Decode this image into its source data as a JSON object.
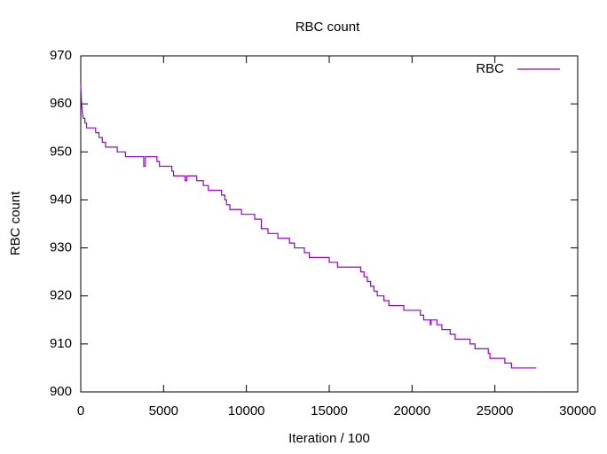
{
  "chart_data": {
    "type": "line",
    "title": "RBC count",
    "x_label": "Iteration / 100",
    "y_label": "RBC count",
    "xlim": [
      0,
      30000
    ],
    "xticks": [
      0,
      5000,
      10000,
      15000,
      20000,
      25000,
      30000
    ],
    "ylim": [
      900,
      970
    ],
    "yticks": [
      900,
      910,
      920,
      930,
      940,
      950,
      960,
      970
    ],
    "legend": "top-right",
    "series": [
      {
        "name": "RBC",
        "color": "#9400d3",
        "x": [
          0,
          50,
          100,
          150,
          250,
          250,
          350,
          350,
          900,
          900,
          1100,
          1100,
          1300,
          1300,
          1500,
          1500,
          2200,
          2200,
          2700,
          2700,
          3800,
          3800,
          3900,
          3900,
          4600,
          4600,
          4750,
          4750,
          5500,
          5500,
          5600,
          5600,
          6300,
          6300,
          6400,
          6400,
          7000,
          7000,
          7400,
          7400,
          7700,
          7700,
          8500,
          8500,
          8700,
          8700,
          8800,
          8800,
          9000,
          9000,
          9700,
          9700,
          10500,
          10500,
          10900,
          10900,
          11300,
          11300,
          11900,
          11900,
          12600,
          12600,
          12900,
          12900,
          13500,
          13500,
          13800,
          13800,
          15000,
          15000,
          15500,
          15500,
          16900,
          16900,
          17100,
          17100,
          17300,
          17300,
          17500,
          17500,
          17700,
          17700,
          17900,
          17900,
          18300,
          18300,
          18600,
          18600,
          19500,
          19500,
          20500,
          20500,
          20700,
          20700,
          21100,
          21100,
          21150,
          21150,
          21500,
          21500,
          21800,
          21800,
          22300,
          22300,
          22600,
          22600,
          23500,
          23500,
          23800,
          23800,
          24600,
          24600,
          24700,
          24700,
          25600,
          25600,
          26000,
          26000,
          27500
        ],
        "values": [
          964,
          960,
          958,
          957,
          957,
          956,
          956,
          955,
          955,
          954,
          954,
          953,
          953,
          952,
          952,
          951,
          951,
          950,
          950,
          949,
          949,
          947,
          947,
          949,
          949,
          948,
          948,
          947,
          947,
          946,
          946,
          945,
          945,
          944,
          944,
          945,
          945,
          944,
          944,
          943,
          943,
          942,
          942,
          941,
          941,
          940,
          940,
          939,
          939,
          938,
          938,
          937,
          937,
          936,
          936,
          934,
          934,
          933,
          933,
          932,
          932,
          931,
          931,
          930,
          930,
          929,
          929,
          928,
          928,
          927,
          927,
          926,
          926,
          925,
          925,
          924,
          924,
          923,
          923,
          922,
          922,
          921,
          921,
          920,
          920,
          919,
          919,
          918,
          918,
          917,
          917,
          916,
          916,
          915,
          915,
          914,
          914,
          915,
          915,
          914,
          914,
          913,
          913,
          912,
          912,
          911,
          911,
          910,
          910,
          909,
          909,
          908,
          908,
          907,
          907,
          906,
          906,
          905,
          905
        ]
      }
    ]
  }
}
